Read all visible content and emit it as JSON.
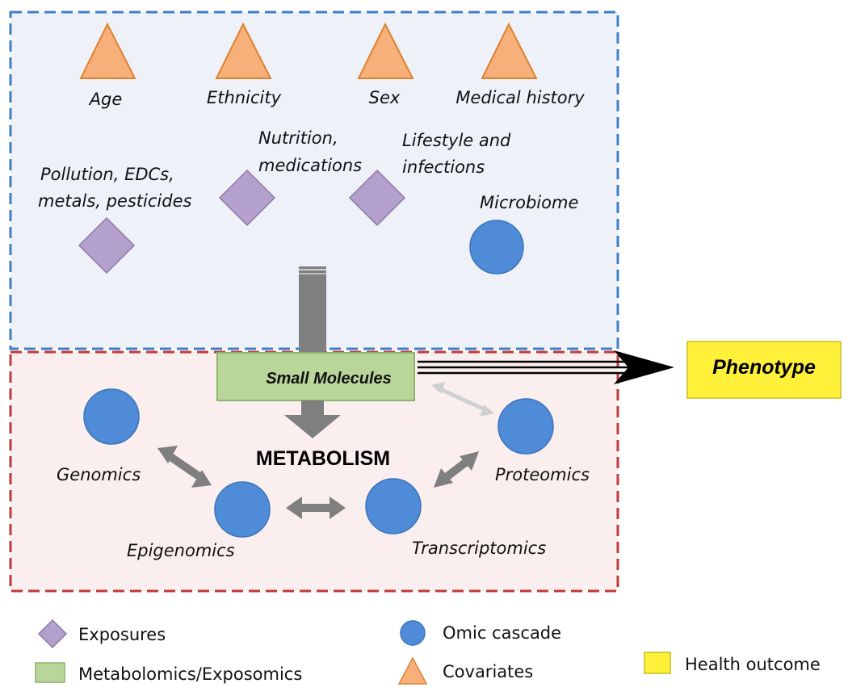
{
  "colors": {
    "exposure": "#b3a0cc",
    "omic": "#4f8bd6",
    "covariate": "#f7b07a",
    "metabolomics": "#b9d69a",
    "health_outcome": "#fff03a",
    "exposome_region_fill": "#eef2f8",
    "exposome_region_border": "#3f7fc9",
    "metabolism_region_fill": "#fbeeee",
    "metabolism_region_border": "#c0393b",
    "arrow_gray": "#7f7f7f"
  },
  "covariates": [
    "Age",
    "Ethnicity",
    "Sex",
    "Medical history"
  ],
  "exposures": {
    "pollution": [
      "Pollution, EDCs,",
      "metals, pesticides"
    ],
    "nutrition": [
      "Nutrition,",
      "medications"
    ],
    "lifestyle": [
      "Lifestyle and",
      "infections"
    ]
  },
  "microbiome": "Microbiome",
  "small_molecules": "Small Molecules",
  "metabolism": "METABOLISM",
  "omics": {
    "genomics": "Genomics",
    "epigenomics": "Epigenomics",
    "transcriptomics": "Transcriptomics",
    "proteomics": "Proteomics"
  },
  "phenotype": "Phenotype",
  "legend": {
    "exposures": "Exposures",
    "metabolomics": "Metabolomics/Exposomics",
    "omic_cascade": "Omic cascade",
    "covariates": "Covariates",
    "health_outcome": "Health outcome"
  }
}
